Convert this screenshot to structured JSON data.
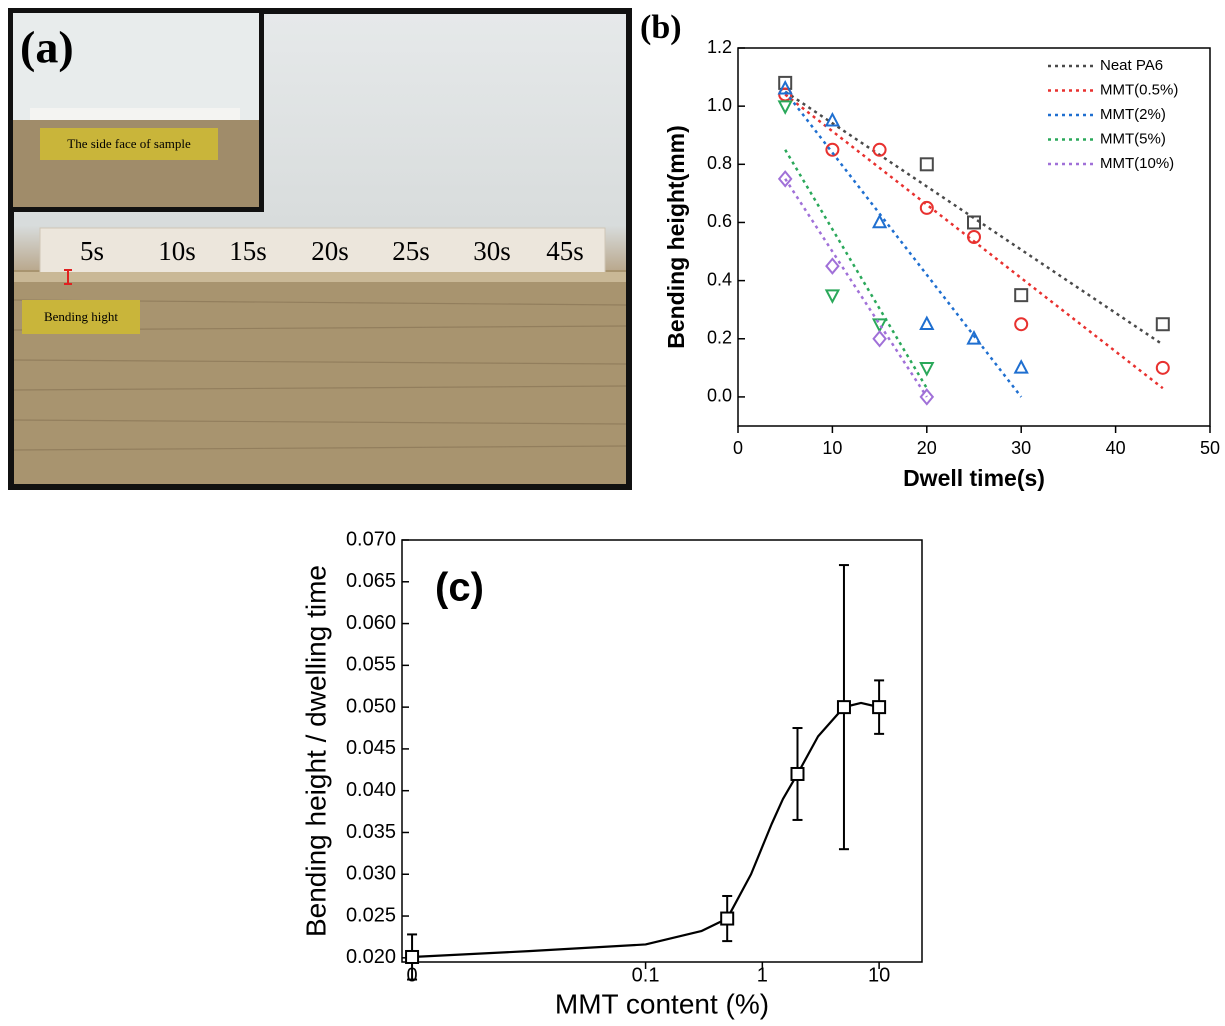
{
  "panel_a": {
    "label": "(a)",
    "inset_caption": "The side face of sample",
    "sample_labels": [
      "5s",
      "10s",
      "15s",
      "20s",
      "25s",
      "30s",
      "45s"
    ],
    "bending_label": "Bending hight"
  },
  "chart_data": [
    {
      "type": "scatter",
      "title": "(b)",
      "xlabel": "Dwell time(s)",
      "ylabel": "Bending height(mm)",
      "xlim": [
        0,
        50
      ],
      "ylim": [
        -0.1,
        1.2
      ],
      "xticks": [
        0,
        10,
        20,
        30,
        40,
        50
      ],
      "yticks": [
        {
          "value": 0,
          "label": "0.0"
        },
        0.2,
        0.4,
        0.6,
        0.8,
        {
          "value": 1,
          "label": "1.0"
        },
        1.2
      ],
      "legend": "upper right",
      "series": [
        {
          "name": "Neat PA6",
          "color": "#4a4a4a",
          "marker": "square",
          "x": [
            5,
            20,
            25,
            30,
            45
          ],
          "values": [
            1.08,
            0.8,
            0.6,
            0.35,
            0.25
          ],
          "fit": {
            "x": [
              5,
              45
            ],
            "values": [
              1.05,
              0.18
            ]
          }
        },
        {
          "name": "MMT(0.5%)",
          "color": "#e8312f",
          "marker": "circle",
          "x": [
            5,
            10,
            15,
            20,
            25,
            30,
            45
          ],
          "values": [
            1.04,
            0.85,
            0.85,
            0.65,
            0.55,
            0.25,
            0.1
          ],
          "fit": {
            "x": [
              5,
              45
            ],
            "values": [
              1.04,
              0.03
            ]
          }
        },
        {
          "name": "MMT(2%)",
          "color": "#1f6fd0",
          "marker": "triangle-up",
          "x": [
            5,
            10,
            15,
            20,
            25,
            30
          ],
          "values": [
            1.06,
            0.95,
            0.6,
            0.25,
            0.2,
            0.1
          ],
          "fit": {
            "x": [
              5,
              30
            ],
            "values": [
              1.05,
              0
            ]
          }
        },
        {
          "name": "MMT(5%)",
          "color": "#2aa85a",
          "marker": "triangle-down",
          "x": [
            5,
            10,
            15,
            20
          ],
          "values": [
            1.0,
            0.35,
            0.25,
            0.1
          ],
          "fit": {
            "x": [
              5,
              20
            ],
            "values": [
              0.85,
              0.03
            ]
          }
        },
        {
          "name": "MMT(10%)",
          "color": "#a070d8",
          "marker": "diamond",
          "x": [
            5,
            10,
            15,
            20
          ],
          "values": [
            0.75,
            0.45,
            0.2,
            0
          ],
          "fit": {
            "x": [
              5,
              20
            ],
            "values": [
              0.75,
              0
            ]
          }
        }
      ]
    },
    {
      "type": "errorbar",
      "title": "(c)",
      "xlabel": "MMT content (%)",
      "ylabel": "Bending height / dwelling time",
      "xscale": "log",
      "xlim": [
        0.00082,
        23.3
      ],
      "ylim": [
        0.0195,
        0.07
      ],
      "xticks": [
        {
          "value": 0.001,
          "label": "0"
        },
        0.1,
        1,
        10
      ],
      "yticks": [
        {
          "value": 0.02,
          "label": "0.020"
        },
        0.025,
        {
          "value": 0.03,
          "label": "0.030"
        },
        0.035,
        {
          "value": 0.04,
          "label": "0.040"
        },
        0.045,
        {
          "value": 0.05,
          "label": "0.050"
        },
        0.055,
        {
          "value": 0.06,
          "label": "0.060"
        },
        0.065,
        {
          "value": 0.07,
          "label": "0.070"
        }
      ],
      "color": "#000000",
      "marker": "square",
      "x": [
        0.001,
        0.5,
        2,
        5,
        10
      ],
      "values": [
        0.0201,
        0.0247,
        0.042,
        0.05,
        0.05
      ],
      "errors": [
        0.0027,
        0.0027,
        0.0055,
        0.017,
        0.0032
      ],
      "curve": {
        "x": [
          0.001,
          0.01,
          0.1,
          0.3,
          0.5,
          0.8,
          1.2,
          1.5,
          2,
          3,
          5,
          7,
          10
        ],
        "values": [
          0.0201,
          0.0208,
          0.0216,
          0.0232,
          0.0247,
          0.03,
          0.036,
          0.039,
          0.042,
          0.0465,
          0.05,
          0.0505,
          0.05
        ]
      }
    }
  ]
}
